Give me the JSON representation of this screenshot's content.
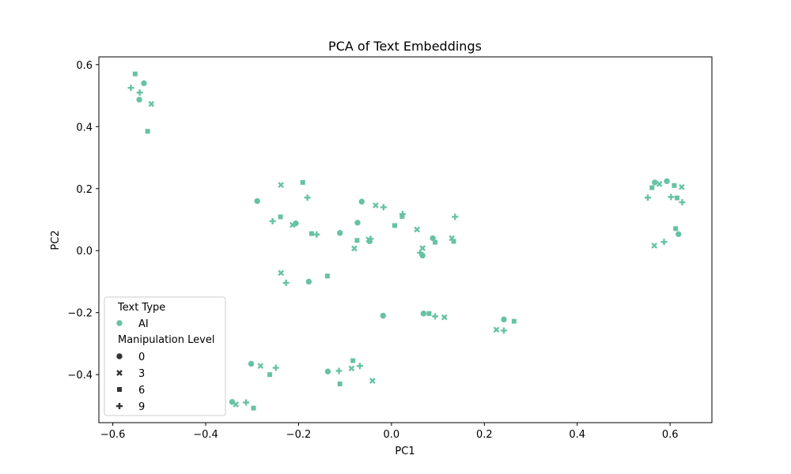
{
  "chart_data": {
    "type": "scatter",
    "title": "PCA of Text Embeddings",
    "xlabel": "PC1",
    "ylabel": "PC2",
    "xlim": [
      -0.63,
      0.69
    ],
    "ylim": [
      -0.555,
      0.625
    ],
    "xticks": [
      -0.6,
      -0.4,
      -0.2,
      0.0,
      0.2,
      0.4,
      0.6
    ],
    "xtick_labels": [
      "−0.6",
      "−0.4",
      "−0.2",
      "0.0",
      "0.2",
      "0.4",
      "0.6"
    ],
    "yticks": [
      -0.4,
      -0.2,
      0.0,
      0.2,
      0.4,
      0.6
    ],
    "ytick_labels": [
      "−0.4",
      "−0.2",
      "0.0",
      "0.2",
      "0.4",
      "0.6"
    ],
    "grid": false,
    "color": "#66c2a5",
    "legend": {
      "placement": "lower-left",
      "hue_title": "Text Type",
      "hue_entries": [
        {
          "label": "AI",
          "color": "#66c2a5"
        }
      ],
      "style_title": "Manipulation Level",
      "style_entries": [
        {
          "label": "0",
          "marker": "circle"
        },
        {
          "label": "3",
          "marker": "x"
        },
        {
          "label": "6",
          "marker": "square"
        },
        {
          "label": "9",
          "marker": "plus"
        }
      ]
    },
    "series": [
      {
        "text_type": "AI",
        "manipulation_level": "0",
        "marker": "circle",
        "x": [
          -0.533,
          -0.543,
          -0.289,
          -0.206,
          -0.111,
          -0.073,
          -0.064,
          -0.047,
          0.067,
          0.089,
          -0.178,
          -0.018,
          0.069,
          0.242,
          -0.302,
          -0.137,
          -0.343,
          0.567,
          0.593,
          0.618
        ],
        "y": [
          0.54,
          0.487,
          0.16,
          0.088,
          0.057,
          0.09,
          0.158,
          0.03,
          -0.016,
          0.04,
          -0.1,
          -0.21,
          -0.203,
          -0.222,
          -0.365,
          -0.39,
          -0.488,
          0.22,
          0.224,
          0.053
        ]
      },
      {
        "text_type": "AI",
        "manipulation_level": "3",
        "marker": "x",
        "x": [
          -0.517,
          -0.238,
          -0.213,
          -0.08,
          -0.034,
          -0.049,
          0.055,
          0.067,
          0.13,
          -0.238,
          0.114,
          0.226,
          -0.282,
          -0.086,
          -0.041,
          -0.335,
          0.577,
          0.625,
          0.566
        ],
        "y": [
          0.473,
          0.212,
          0.083,
          0.007,
          0.146,
          0.036,
          0.068,
          0.008,
          0.04,
          -0.072,
          -0.215,
          -0.255,
          -0.372,
          -0.38,
          -0.42,
          -0.496,
          0.215,
          0.205,
          0.016
        ]
      },
      {
        "text_type": "AI",
        "manipulation_level": "6",
        "marker": "square",
        "x": [
          -0.552,
          -0.525,
          -0.191,
          -0.239,
          -0.172,
          -0.074,
          0.007,
          0.023,
          0.094,
          0.134,
          -0.138,
          0.081,
          0.264,
          -0.262,
          -0.083,
          -0.111,
          -0.297,
          0.561,
          0.609,
          0.615,
          0.612
        ],
        "y": [
          0.57,
          0.385,
          0.22,
          0.109,
          0.055,
          0.033,
          0.081,
          0.11,
          0.027,
          0.03,
          -0.082,
          -0.203,
          -0.228,
          -0.4,
          -0.355,
          -0.43,
          -0.508,
          0.203,
          0.21,
          0.17,
          0.071
        ]
      },
      {
        "text_type": "AI",
        "manipulation_level": "9",
        "marker": "plus",
        "x": [
          -0.561,
          -0.542,
          -0.181,
          -0.256,
          -0.161,
          -0.045,
          -0.017,
          0.024,
          0.062,
          0.137,
          -0.227,
          0.094,
          0.242,
          -0.249,
          -0.113,
          -0.068,
          -0.313,
          0.552,
          0.602,
          0.626,
          0.587
        ],
        "y": [
          0.525,
          0.51,
          0.171,
          0.095,
          0.052,
          0.038,
          0.14,
          0.118,
          -0.007,
          0.109,
          -0.104,
          -0.212,
          -0.258,
          -0.378,
          -0.388,
          -0.372,
          -0.49,
          0.171,
          0.173,
          0.156,
          0.028
        ]
      }
    ]
  }
}
